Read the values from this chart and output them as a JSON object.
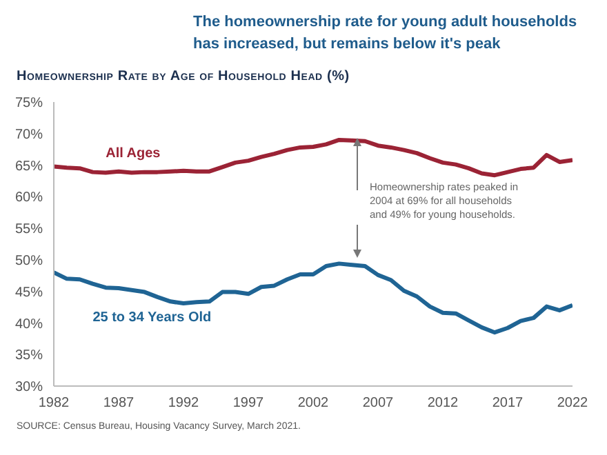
{
  "chart_data": {
    "type": "line",
    "title": "The homeownership rate for young adult households has increased, but remains below it's peak",
    "subtitle": "Homeownership Rate by Age of Household Head (%)",
    "x": [
      1982,
      1983,
      1984,
      1985,
      1986,
      1987,
      1988,
      1989,
      1990,
      1991,
      1992,
      1993,
      1994,
      1995,
      1996,
      1997,
      1998,
      1999,
      2000,
      2001,
      2002,
      2003,
      2004,
      2005,
      2006,
      2007,
      2008,
      2009,
      2010,
      2011,
      2012,
      2013,
      2014,
      2015,
      2016,
      2017,
      2018,
      2019,
      2020,
      2021,
      2022
    ],
    "series": [
      {
        "name": "All Ages",
        "color": "#9b2335",
        "values": [
          64.8,
          64.6,
          64.5,
          63.9,
          63.8,
          64.0,
          63.8,
          63.9,
          63.9,
          64.0,
          64.1,
          64.0,
          64.0,
          64.7,
          65.4,
          65.7,
          66.3,
          66.8,
          67.4,
          67.8,
          67.9,
          68.3,
          69.0,
          68.9,
          68.8,
          68.1,
          67.8,
          67.4,
          66.9,
          66.1,
          65.4,
          65.1,
          64.5,
          63.7,
          63.4,
          63.9,
          64.4,
          64.6,
          66.6,
          65.5,
          65.8
        ]
      },
      {
        "name": "25 to 34 Years Old",
        "color": "#1f6494",
        "values": [
          48.0,
          47.0,
          46.9,
          46.2,
          45.6,
          45.5,
          45.2,
          44.9,
          44.1,
          43.4,
          43.1,
          43.3,
          43.4,
          44.9,
          44.9,
          44.6,
          45.7,
          45.9,
          46.9,
          47.7,
          47.7,
          49.0,
          49.4,
          49.2,
          49.0,
          47.6,
          46.8,
          45.1,
          44.2,
          42.6,
          41.6,
          41.5,
          40.4,
          39.3,
          38.5,
          39.2,
          40.3,
          40.8,
          42.6,
          42.0,
          42.8
        ]
      }
    ],
    "xlim": [
      1982,
      2022
    ],
    "xticks": [
      1982,
      1987,
      1992,
      1997,
      2002,
      2007,
      2012,
      2017,
      2022
    ],
    "ylim": [
      30,
      75
    ],
    "yticks": [
      {
        "value": 30,
        "label": "30%"
      },
      {
        "value": 35,
        "label": "35%"
      },
      {
        "value": 40,
        "label": "40%"
      },
      {
        "value": 45,
        "label": "45%"
      },
      {
        "value": 50,
        "label": "50%"
      },
      {
        "value": 55,
        "label": "55%"
      },
      {
        "value": 60,
        "label": "60%"
      },
      {
        "value": 65,
        "label": "65%"
      },
      {
        "value": 70,
        "label": "70%"
      },
      {
        "value": 75,
        "label": "75%"
      }
    ],
    "grid": false,
    "legend": false,
    "marker": "none",
    "line_style": "solid",
    "annotations": [
      "Homeownership rates peaked in 2004 at 69% for all households and 49% for young households.",
      "SOURCE: Census Bureau, Housing Vacancy Survey, March 2021."
    ]
  }
}
